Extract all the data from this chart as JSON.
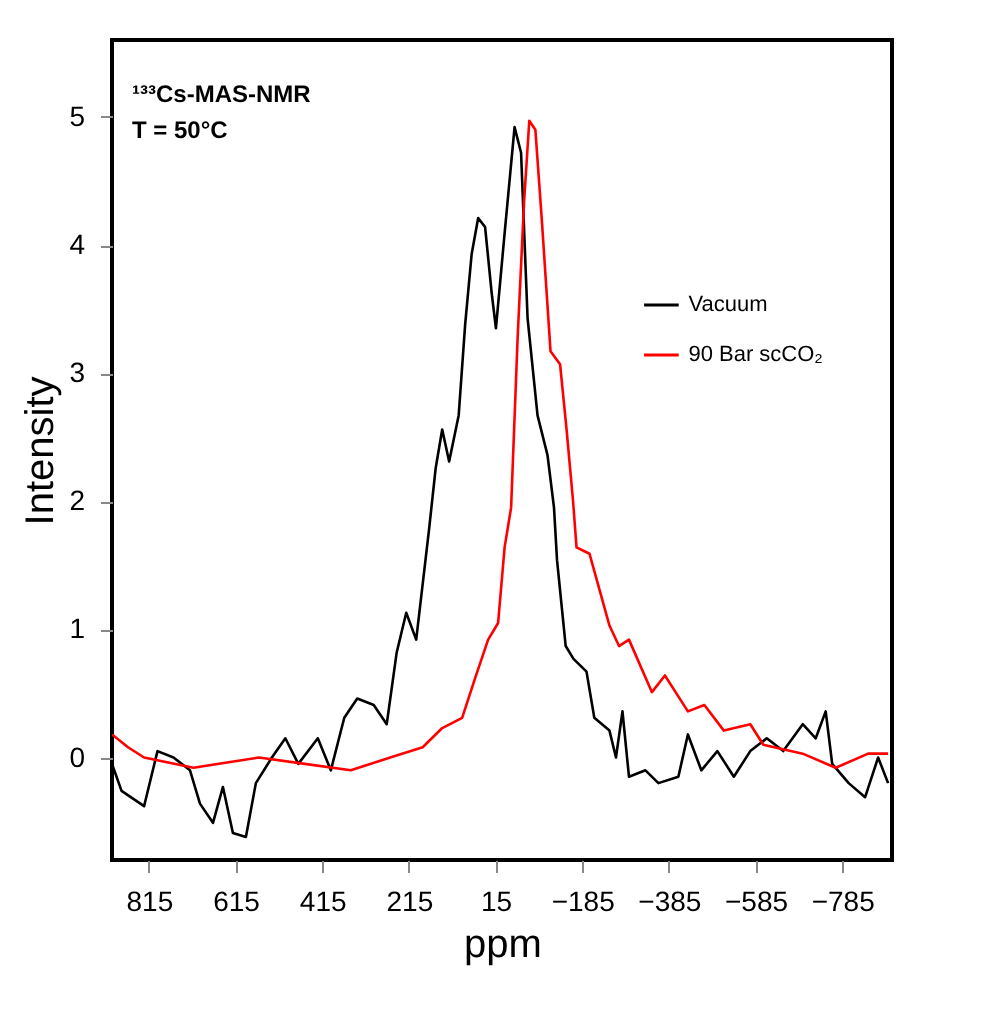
{
  "chart_data": {
    "type": "line",
    "xlabel": "ppm",
    "ylabel": "Intensity",
    "xlim": [
      900,
      -900
    ],
    "xticks": [
      815,
      615,
      415,
      215,
      15,
      -185,
      -385,
      -585,
      -785
    ],
    "ylim": [
      -0.8,
      5.6
    ],
    "yticks": [
      0,
      1,
      2,
      3,
      4,
      5
    ],
    "grid": false,
    "legend": "right",
    "line_style": "solid",
    "marker": "none",
    "annotations": [
      "¹³³Cs-MAS-NMR",
      "T = 50°C"
    ],
    "series": [
      {
        "name": "Vacuum",
        "color": "#000000",
        "x": [
          900,
          878,
          826,
          795,
          758,
          720,
          697,
          667,
          644,
          621,
          591,
          568,
          531,
          500,
          470,
          425,
          395,
          364,
          334,
          296,
          266,
          243,
          221,
          198,
          168,
          153,
          138,
          122,
          100,
          85,
          70,
          55,
          39,
          24,
          14,
          -6,
          -29,
          -44,
          -59,
          -82,
          -105,
          -120,
          -127,
          -147,
          -165,
          -195,
          -213,
          -248,
          -263,
          -278,
          -293,
          -331,
          -361,
          -407,
          -429,
          -460,
          -497,
          -535,
          -573,
          -611,
          -649,
          -694,
          -724,
          -747,
          -762,
          -800,
          -838,
          -868,
          -891
        ],
        "values": [
          -0.05,
          -0.26,
          -0.38,
          0.05,
          0,
          -0.1,
          -0.36,
          -0.51,
          -0.23,
          -0.59,
          -0.62,
          -0.2,
          0,
          0.15,
          -0.05,
          0.15,
          -0.1,
          0.31,
          0.46,
          0.41,
          0.26,
          0.82,
          1.13,
          0.92,
          1.79,
          2.26,
          2.56,
          2.31,
          2.67,
          3.38,
          3.93,
          4.21,
          4.14,
          3.63,
          3.35,
          4.09,
          4.92,
          4.72,
          3.43,
          2.67,
          2.36,
          1.95,
          1.54,
          0.87,
          0.77,
          0.67,
          0.31,
          0.21,
          0,
          0.36,
          -0.15,
          -0.1,
          -0.2,
          -0.15,
          0.18,
          -0.1,
          0.05,
          -0.15,
          0.05,
          0.15,
          0.05,
          0.26,
          0.15,
          0.36,
          -0.05,
          -0.2,
          -0.31,
          0,
          -0.2
        ]
      },
      {
        "name": "90 Bar scCO₂",
        "color": "#ff0000",
        "x": [
          900,
          863,
          826,
          712,
          561,
          455,
          349,
          258,
          183,
          138,
          92,
          62,
          32,
          9,
          -6,
          -21,
          -36,
          -51,
          -63,
          -77,
          -92,
          -112,
          -134,
          -149,
          -164,
          -172,
          -202,
          -248,
          -270,
          -293,
          -346,
          -376,
          -429,
          -467,
          -512,
          -573,
          -603,
          -694,
          -770,
          -845,
          -891
        ],
        "values": [
          0.18,
          0.08,
          0,
          -0.08,
          0,
          -0.05,
          -0.1,
          0,
          0.08,
          0.23,
          0.31,
          0.62,
          0.92,
          1.05,
          1.64,
          1.95,
          3.27,
          4.34,
          4.97,
          4.9,
          4.19,
          3.17,
          3.07,
          2.56,
          2.0,
          1.64,
          1.59,
          1.03,
          0.87,
          0.92,
          0.51,
          0.64,
          0.36,
          0.41,
          0.21,
          0.26,
          0.1,
          0.03,
          -0.08,
          0.03,
          0.03
        ]
      }
    ]
  }
}
